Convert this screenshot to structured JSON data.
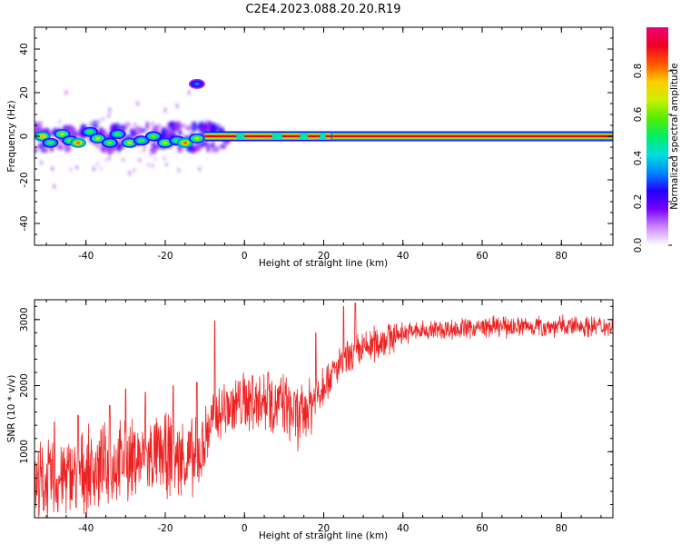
{
  "figure": {
    "title": "C2E4.2023.088.20.20.R19"
  },
  "chart_data": [
    {
      "type": "heatmap",
      "xlabel": "Height of straight line (km)",
      "ylabel": "Frequency (Hz)",
      "xlim": [
        -53,
        93
      ],
      "ylim": [
        -50,
        50
      ],
      "x_ticks": [
        -40,
        -20,
        0,
        20,
        40,
        60,
        80
      ],
      "x_tick_labels": [
        "-40",
        "-20",
        "0",
        "20",
        "40",
        "60",
        "80"
      ],
      "y_ticks": [
        -40,
        -20,
        0,
        20,
        40
      ],
      "y_tick_labels": [
        "-40",
        "-20",
        "0",
        "20",
        "40"
      ],
      "colorbar": {
        "label": "Normalized spectral amplitude",
        "range": [
          0,
          1
        ],
        "ticks": [
          0.0,
          0.2,
          0.4,
          0.6,
          0.8
        ],
        "tick_labels": [
          "0.0",
          "0.2",
          "0.4",
          "0.6",
          "0.8"
        ],
        "colormap": [
          "#ffffff",
          "#cc88ff",
          "#7700ff",
          "#2200ff",
          "#0088ff",
          "#00dddd",
          "#00ee66",
          "#55ee00",
          "#ccee00",
          "#ffcc00",
          "#ff5500",
          "#ee0022",
          "#ee0077"
        ]
      },
      "carrier": {
        "frequency_hz": 0,
        "noisy_segment_x": [
          -53,
          -10
        ],
        "broken_segment_x": [
          -10,
          22
        ],
        "steady_segment_x": [
          22,
          93
        ]
      },
      "blobs": [
        {
          "x": -51,
          "f": 0,
          "level": 0.7
        },
        {
          "x": -49,
          "f": -3,
          "level": 0.5
        },
        {
          "x": -46,
          "f": 1,
          "level": 0.6
        },
        {
          "x": -44,
          "f": -2,
          "level": 0.55
        },
        {
          "x": -42,
          "f": -3,
          "level": 0.75
        },
        {
          "x": -39,
          "f": 2,
          "level": 0.5
        },
        {
          "x": -37,
          "f": -1,
          "level": 0.6
        },
        {
          "x": -34,
          "f": -3,
          "level": 0.55
        },
        {
          "x": -32,
          "f": 1,
          "level": 0.5
        },
        {
          "x": -29,
          "f": -3,
          "level": 0.6
        },
        {
          "x": -26,
          "f": -2,
          "level": 0.5
        },
        {
          "x": -23,
          "f": 0,
          "level": 0.55
        },
        {
          "x": -20,
          "f": -3,
          "level": 0.6
        },
        {
          "x": -17,
          "f": -2,
          "level": 0.5
        },
        {
          "x": -15,
          "f": -3,
          "level": 0.75
        },
        {
          "x": -12,
          "f": -1,
          "level": 0.6
        },
        {
          "x": -12,
          "f": 24,
          "level": 0.3
        }
      ],
      "sparse_speckle": [
        {
          "x": -45,
          "f": 20
        },
        {
          "x": -27,
          "f": 15
        },
        {
          "x": -17,
          "f": 14
        },
        {
          "x": -14,
          "f": 20
        },
        {
          "x": -38,
          "f": -15
        },
        {
          "x": -29,
          "f": -17
        },
        {
          "x": -48,
          "f": -23
        },
        {
          "x": -20,
          "f": 12
        },
        {
          "x": -34,
          "f": 12
        }
      ],
      "series_color": "#ee0022"
    },
    {
      "type": "line",
      "xlabel": "Height of straight line (km)",
      "ylabel": "SNR (10 * v/v)",
      "xlim": [
        -53,
        93
      ],
      "ylim": [
        0,
        3300
      ],
      "x_ticks": [
        -40,
        -20,
        0,
        20,
        40,
        60,
        80
      ],
      "x_tick_labels": [
        "-40",
        "-20",
        "0",
        "20",
        "40",
        "60",
        "80"
      ],
      "y_ticks": [
        1000,
        2000,
        3000
      ],
      "y_tick_labels": [
        "1000",
        "2000",
        "3000"
      ],
      "color": "#ee2222",
      "trend": [
        {
          "x": -53,
          "y": 500
        },
        {
          "x": -40,
          "y": 700
        },
        {
          "x": -30,
          "y": 850
        },
        {
          "x": -20,
          "y": 950
        },
        {
          "x": -12,
          "y": 850
        },
        {
          "x": -10,
          "y": 1200
        },
        {
          "x": -8,
          "y": 1500
        },
        {
          "x": -5,
          "y": 1650
        },
        {
          "x": 0,
          "y": 1750
        },
        {
          "x": 5,
          "y": 1800
        },
        {
          "x": 10,
          "y": 1700
        },
        {
          "x": 14,
          "y": 1500
        },
        {
          "x": 17,
          "y": 1750
        },
        {
          "x": 20,
          "y": 2050
        },
        {
          "x": 25,
          "y": 2350
        },
        {
          "x": 30,
          "y": 2550
        },
        {
          "x": 35,
          "y": 2700
        },
        {
          "x": 40,
          "y": 2800
        },
        {
          "x": 50,
          "y": 2850
        },
        {
          "x": 60,
          "y": 2880
        },
        {
          "x": 70,
          "y": 2900
        },
        {
          "x": 80,
          "y": 2900
        },
        {
          "x": 93,
          "y": 2900
        }
      ],
      "spikes": [
        {
          "x": -48,
          "y": 1450
        },
        {
          "x": -42,
          "y": 1550
        },
        {
          "x": -34,
          "y": 1700
        },
        {
          "x": -30,
          "y": 1950
        },
        {
          "x": -25,
          "y": 1900
        },
        {
          "x": -18,
          "y": 2000
        },
        {
          "x": -12,
          "y": 2050
        },
        {
          "x": -7.5,
          "y": 2980
        },
        {
          "x": 2,
          "y": 2150
        },
        {
          "x": 6,
          "y": 2200
        },
        {
          "x": 18,
          "y": 2800
        },
        {
          "x": 25,
          "y": 3200
        },
        {
          "x": 28,
          "y": 3250
        }
      ]
    }
  ]
}
